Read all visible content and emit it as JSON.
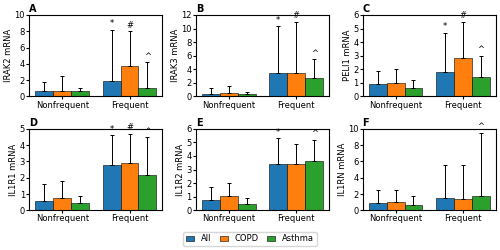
{
  "legend": "lower center",
  "chart_data": [
    {
      "type": "bar",
      "title": "A",
      "ylabel": "IRAK2 mRNA",
      "categories": [
        "Nonfrequent",
        "Frequent"
      ],
      "ylim": [
        0,
        10
      ],
      "yticks": [
        0,
        2,
        4,
        6,
        8,
        10
      ],
      "series": [
        {
          "name": "All",
          "values": [
            0.7,
            1.9
          ],
          "q3": [
            1.8,
            8.2
          ],
          "annotations": [
            null,
            "*"
          ]
        },
        {
          "name": "COPD",
          "values": [
            0.7,
            3.7
          ],
          "q3": [
            2.5,
            8.0
          ],
          "annotations": [
            null,
            "#"
          ]
        },
        {
          "name": "Asthma",
          "values": [
            0.7,
            1.1
          ],
          "q3": [
            1.1,
            4.2
          ],
          "annotations": [
            null,
            "^"
          ]
        }
      ]
    },
    {
      "type": "bar",
      "title": "B",
      "ylabel": "IRAK3 mRNA",
      "categories": [
        "Nonfrequent",
        "Frequent"
      ],
      "ylim": [
        0,
        12
      ],
      "yticks": [
        0,
        2,
        4,
        6,
        8,
        10,
        12
      ],
      "series": [
        {
          "name": "All",
          "values": [
            0.4,
            3.4
          ],
          "q3": [
            1.2,
            10.3
          ],
          "annotations": [
            null,
            "*"
          ]
        },
        {
          "name": "COPD",
          "values": [
            0.5,
            3.5
          ],
          "q3": [
            1.5,
            11.0
          ],
          "annotations": [
            null,
            "#"
          ]
        },
        {
          "name": "Asthma",
          "values": [
            0.3,
            2.7
          ],
          "q3": [
            0.6,
            5.5
          ],
          "annotations": [
            null,
            "^"
          ]
        }
      ]
    },
    {
      "type": "bar",
      "title": "C",
      "ylabel": "PELI1 mRNA",
      "categories": [
        "Nonfrequent",
        "Frequent"
      ],
      "ylim": [
        0,
        6
      ],
      "yticks": [
        0,
        1,
        2,
        3,
        4,
        5,
        6
      ],
      "series": [
        {
          "name": "All",
          "values": [
            0.9,
            1.8
          ],
          "q3": [
            1.9,
            4.7
          ],
          "annotations": [
            null,
            "*"
          ]
        },
        {
          "name": "COPD",
          "values": [
            1.0,
            2.8
          ],
          "q3": [
            2.0,
            5.5
          ],
          "annotations": [
            null,
            "#"
          ]
        },
        {
          "name": "Asthma",
          "values": [
            0.6,
            1.4
          ],
          "q3": [
            1.2,
            3.0
          ],
          "annotations": [
            null,
            "^"
          ]
        }
      ]
    },
    {
      "type": "bar",
      "title": "D",
      "ylabel": "IL1R1 mRNA",
      "categories": [
        "Nonfrequent",
        "Frequent"
      ],
      "ylim": [
        0,
        5
      ],
      "yticks": [
        0,
        1,
        2,
        3,
        4,
        5
      ],
      "series": [
        {
          "name": "All",
          "values": [
            0.6,
            2.8
          ],
          "q3": [
            1.6,
            4.6
          ],
          "annotations": [
            null,
            "*"
          ]
        },
        {
          "name": "COPD",
          "values": [
            0.75,
            2.9
          ],
          "q3": [
            1.8,
            4.7
          ],
          "annotations": [
            null,
            "#"
          ]
        },
        {
          "name": "Asthma",
          "values": [
            0.45,
            2.15
          ],
          "q3": [
            0.9,
            4.5
          ],
          "annotations": [
            null,
            "^"
          ]
        }
      ]
    },
    {
      "type": "bar",
      "title": "E",
      "ylabel": "IL1R2 mRNA",
      "categories": [
        "Nonfrequent",
        "Frequent"
      ],
      "ylim": [
        0,
        6
      ],
      "yticks": [
        0,
        1,
        2,
        3,
        4,
        5,
        6
      ],
      "series": [
        {
          "name": "All",
          "values": [
            0.75,
            3.4
          ],
          "q3": [
            1.7,
            5.3
          ],
          "annotations": [
            null,
            "*"
          ]
        },
        {
          "name": "COPD",
          "values": [
            1.05,
            3.4
          ],
          "q3": [
            2.0,
            4.9
          ],
          "annotations": [
            null,
            null
          ]
        },
        {
          "name": "Asthma",
          "values": [
            0.45,
            3.6
          ],
          "q3": [
            0.9,
            5.2
          ],
          "annotations": [
            null,
            "^"
          ]
        }
      ]
    },
    {
      "type": "bar",
      "title": "F",
      "ylabel": "IL1RN mRNA",
      "categories": [
        "Nonfrequent",
        "Frequent"
      ],
      "ylim": [
        0,
        10
      ],
      "yticks": [
        0,
        2,
        4,
        6,
        8,
        10
      ],
      "series": [
        {
          "name": "All",
          "values": [
            0.9,
            1.5
          ],
          "q3": [
            2.5,
            5.5
          ],
          "annotations": [
            null,
            null
          ]
        },
        {
          "name": "COPD",
          "values": [
            1.0,
            1.4
          ],
          "q3": [
            2.5,
            5.5
          ],
          "annotations": [
            null,
            null
          ]
        },
        {
          "name": "Asthma",
          "values": [
            0.7,
            1.7
          ],
          "q3": [
            1.8,
            9.5
          ],
          "annotations": [
            null,
            "^"
          ]
        }
      ]
    }
  ]
}
